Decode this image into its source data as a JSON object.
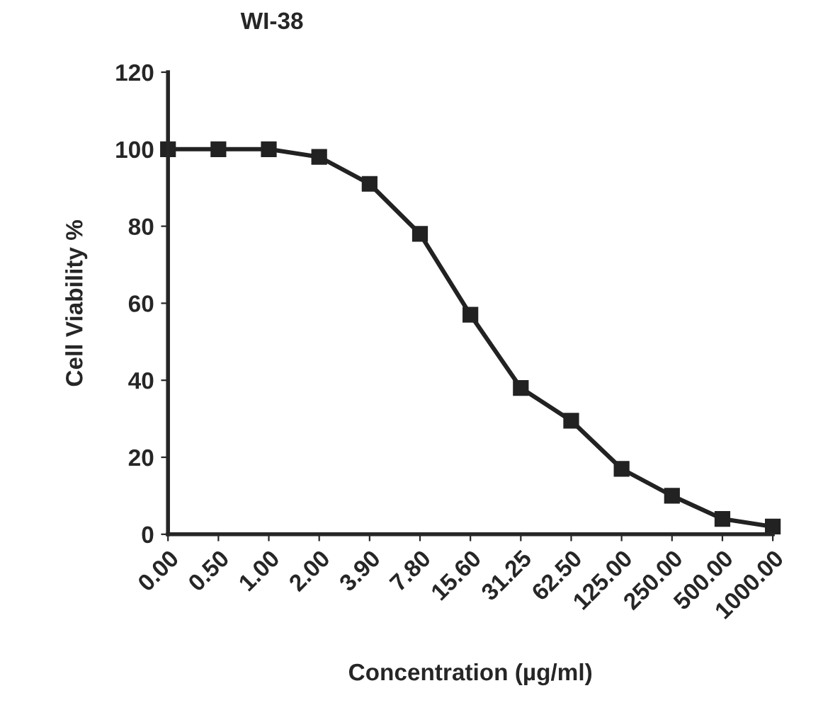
{
  "chart_data": {
    "type": "line",
    "title": "WI-38",
    "xlabel": "Concentration (µg/ml)",
    "ylabel": "Cell Viability %",
    "categories": [
      "0.00",
      "0.50",
      "1.00",
      "2.00",
      "3.90",
      "7.80",
      "15.60",
      "31.25",
      "62.50",
      "125.00",
      "250.00",
      "500.00",
      "1000.00"
    ],
    "series": [
      {
        "color": "#222222",
        "values": [
          100,
          100,
          100,
          98,
          91,
          78,
          57,
          38,
          29.5,
          17,
          10,
          4,
          2
        ]
      }
    ],
    "ylim": [
      0,
      120
    ],
    "yticks": [
      0,
      20,
      40,
      60,
      80,
      100,
      120
    ],
    "marker": "square",
    "line_style": "solid",
    "grid": false,
    "legend": false
  }
}
